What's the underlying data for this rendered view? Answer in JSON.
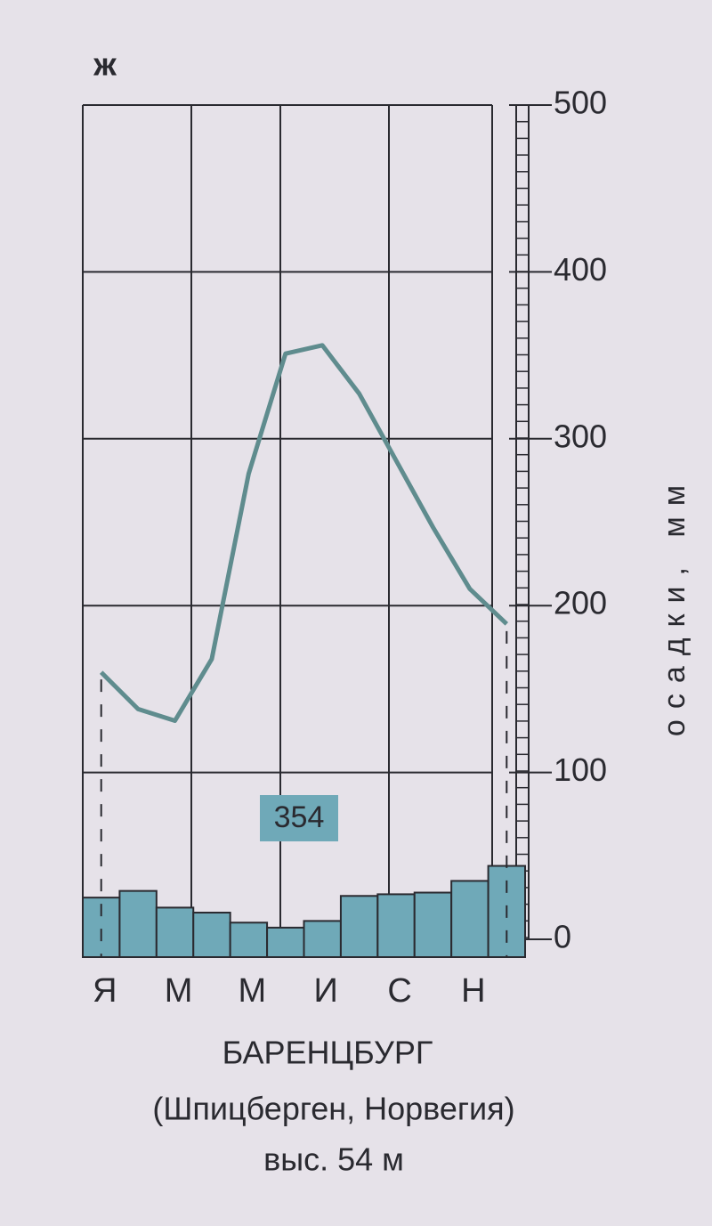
{
  "chart_data": {
    "type": "bar",
    "panel_label": "ж",
    "title": "БАРЕНЦБУРГ",
    "subtitle": "(Шпицберген, Норвегия)",
    "note": "выс. 54 м",
    "annotation": "354",
    "y_label": "осадки, мм",
    "categories": [
      "Я",
      null,
      "М",
      null,
      "М",
      null,
      "И",
      null,
      "С",
      null,
      "Н",
      null
    ],
    "series": [
      {
        "type": "bar",
        "color": "#6fa9b8",
        "values": [
          25,
          29,
          19,
          16,
          10,
          7,
          11,
          26,
          27,
          28,
          35,
          44
        ]
      },
      {
        "type": "line",
        "color": "#5f8c8e",
        "values": [
          160,
          138,
          131,
          168,
          279,
          351,
          356,
          327,
          287,
          247,
          210,
          189
        ]
      }
    ],
    "ylim": [
      0,
      500
    ],
    "yticks": [
      0,
      100,
      200,
      300,
      400,
      500
    ],
    "grid": true
  }
}
